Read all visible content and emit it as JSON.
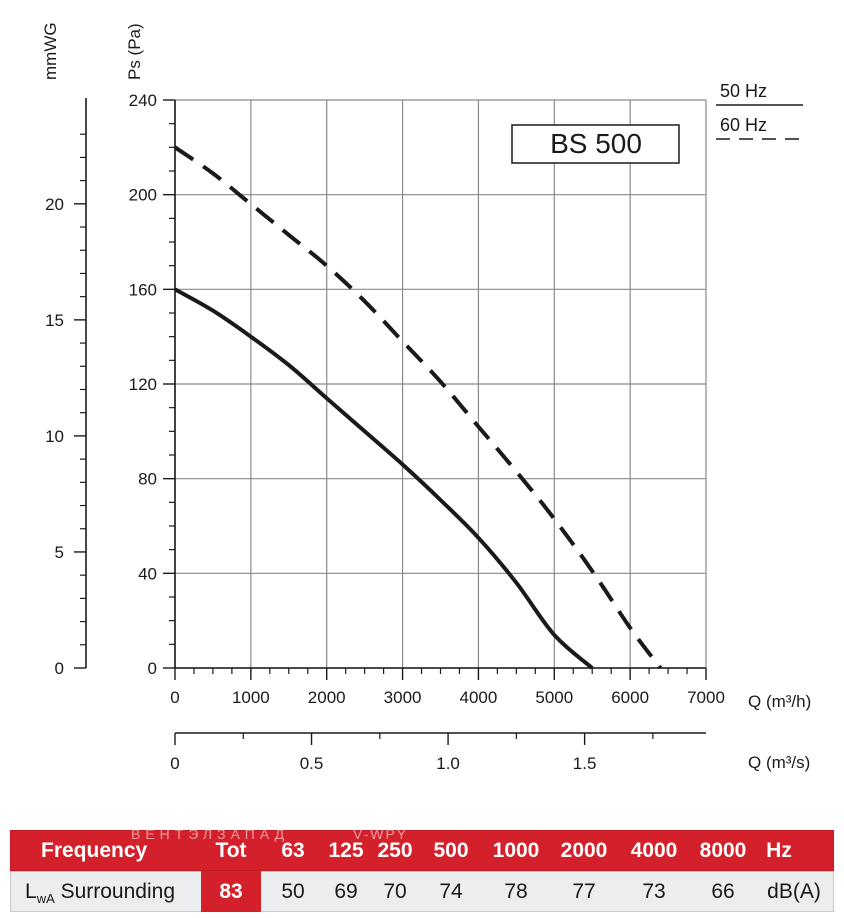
{
  "chart_data": {
    "type": "line",
    "model_label": "BS 500",
    "ylabel_pa": "Ps (Pa)",
    "ylabel_mmwg": "mmWG",
    "xlabel_m3h": "Q (m³/h)",
    "xlabel_m3s": "Q (m³/s)",
    "xlim": [
      0,
      7000
    ],
    "ylim": [
      0,
      240
    ],
    "grid": true,
    "legend_position": "top-right",
    "x_ticks": [
      "0",
      "1000",
      "2000",
      "3000",
      "4000",
      "5000",
      "6000",
      "7000"
    ],
    "y_ticks_pa": [
      "0",
      "40",
      "80",
      "120",
      "160",
      "200",
      "240"
    ],
    "y_ticks_mmwg": [
      "0",
      "5",
      "10",
      "15",
      "20"
    ],
    "x_ticks_m3s": [
      "0",
      "0.5",
      "1.0",
      "1.5"
    ],
    "series": [
      {
        "name": "50 Hz",
        "style": "solid",
        "color": "#1a1a1a",
        "x": [
          0,
          500,
          1000,
          1500,
          2000,
          2500,
          3000,
          3500,
          4000,
          4500,
          5000,
          5500
        ],
        "y": [
          160,
          151,
          140,
          128,
          114,
          100,
          86,
          71,
          55,
          36,
          14,
          0
        ]
      },
      {
        "name": "60 Hz",
        "style": "dashed",
        "color": "#1a1a1a",
        "x": [
          0,
          500,
          1000,
          1500,
          2000,
          2500,
          3000,
          3500,
          4000,
          4500,
          5000,
          5500,
          6000,
          6400
        ],
        "y": [
          220,
          209,
          196,
          183,
          170,
          155,
          138,
          121,
          102,
          83,
          63,
          41,
          17,
          0
        ]
      }
    ]
  },
  "table": {
    "header": {
      "label": "Frequency",
      "cells": [
        "Tot",
        "63",
        "125",
        "250",
        "500",
        "1000",
        "2000",
        "4000",
        "8000",
        "Hz"
      ]
    },
    "lwa_row": {
      "label_main": "L",
      "label_sub": "wA",
      "label_rest": " Surrounding",
      "cells": [
        "83",
        "50",
        "69",
        "70",
        "74",
        "78",
        "77",
        "73",
        "66",
        "dB(A)"
      ]
    },
    "watermark": "ВЕНТЭЛЗАПАД",
    "watermark2": "V-WPY",
    "highlight_color": "#d4202a"
  }
}
